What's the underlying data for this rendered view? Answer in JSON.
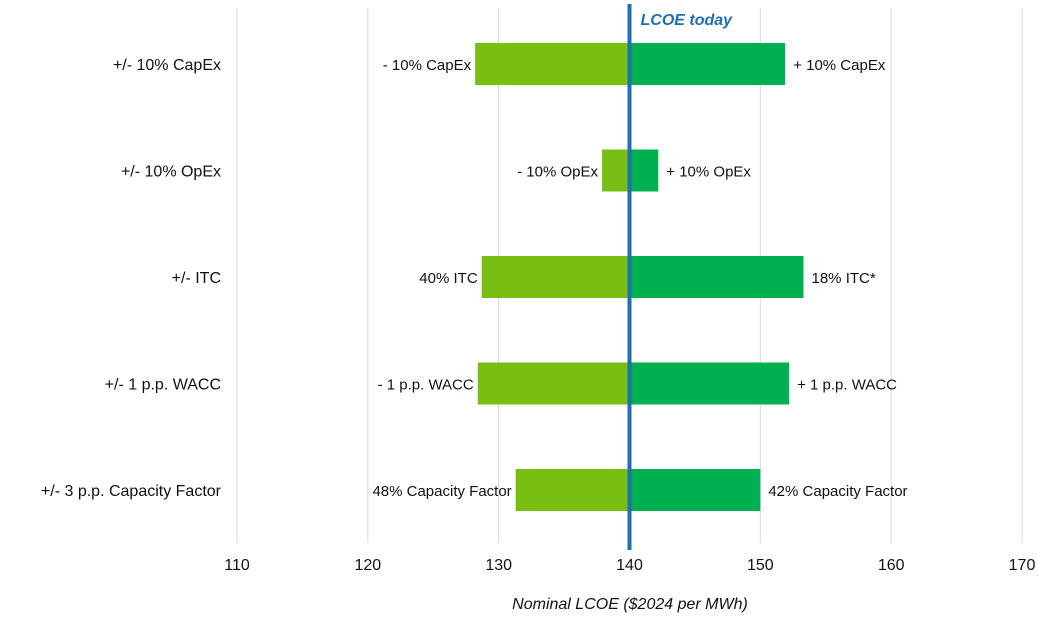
{
  "chart_data": {
    "type": "bar",
    "orientation": "horizontal",
    "style": "tornado",
    "xlabel": "Nominal LCOE ($2024 per MWh)",
    "xlim": [
      110,
      170
    ],
    "xticks": [
      110,
      120,
      130,
      140,
      150,
      160,
      170
    ],
    "grid": "vertical",
    "base_value": 140,
    "reference_line": {
      "value": 140,
      "label": "LCOE today",
      "color": "#1f6fb5"
    },
    "colors": {
      "low": "#79bf13",
      "high": "#00b050"
    },
    "categories": [
      "+/- 10% CapEx",
      "+/- 10% OpEx",
      "+/- ITC",
      "+/- 1 p.p. WACC",
      "+/- 3 p.p. Capacity Factor"
    ],
    "series": [
      {
        "values": [
          128.2,
          137.9,
          128.7,
          128.4,
          131.3
        ],
        "labels": [
          "- 10% CapEx",
          "- 10% OpEx",
          "40% ITC",
          "- 1 p.p. WACC",
          "48% Capacity Factor"
        ]
      },
      {
        "values": [
          151.9,
          142.2,
          153.3,
          152.2,
          150.0
        ],
        "labels": [
          "+ 10% CapEx",
          "+ 10% OpEx",
          "18% ITC*",
          "+ 1 p.p. WACC",
          "42% Capacity Factor"
        ]
      }
    ]
  }
}
